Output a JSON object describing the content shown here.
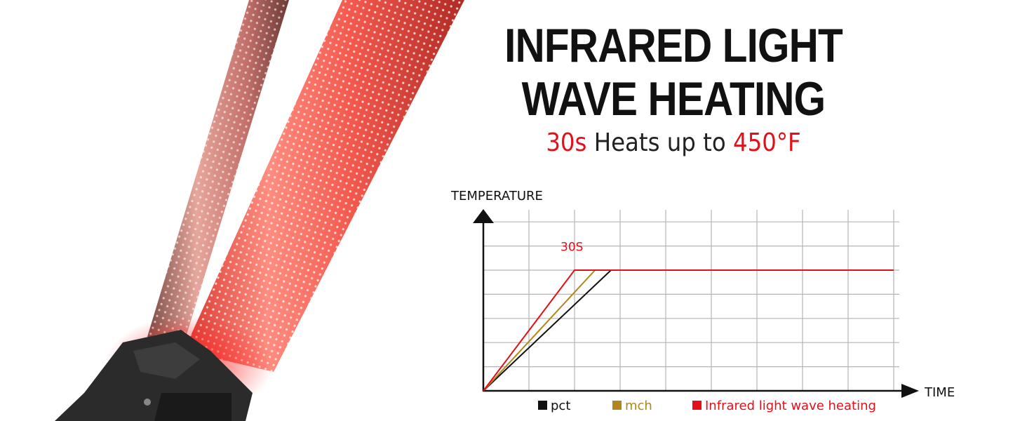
{
  "headline": {
    "line1": "INFRARED LIGHT",
    "line2": "WAVE HEATING"
  },
  "subtitle": {
    "time": "30s",
    "middle": " Heats up to ",
    "temperature": "450°F"
  },
  "colors": {
    "accent_red": "#e3101a",
    "mch_gold": "#b3861b",
    "pct_black": "#111111",
    "grid": "#b4b4b4"
  },
  "chart_data": {
    "type": "line",
    "title": "",
    "xlabel": "TIME",
    "ylabel": "TEMPERATURE",
    "grid": true,
    "legend_position": "bottom",
    "annotations": [
      {
        "text": "30S",
        "x": 2,
        "y": 6
      }
    ],
    "xlim": [
      0,
      9
    ],
    "ylim": [
      0,
      7.5
    ],
    "series": [
      {
        "name": "pct",
        "color": "#111111",
        "x": [
          0,
          2.8,
          9
        ],
        "y": [
          0,
          5,
          5
        ]
      },
      {
        "name": "mch",
        "color": "#b3861b",
        "x": [
          0,
          2.45,
          9
        ],
        "y": [
          0,
          5,
          5
        ]
      },
      {
        "name": "Infrared light wave heating",
        "color": "#e3101a",
        "x": [
          0,
          2,
          9
        ],
        "y": [
          0,
          5,
          5
        ]
      }
    ]
  }
}
